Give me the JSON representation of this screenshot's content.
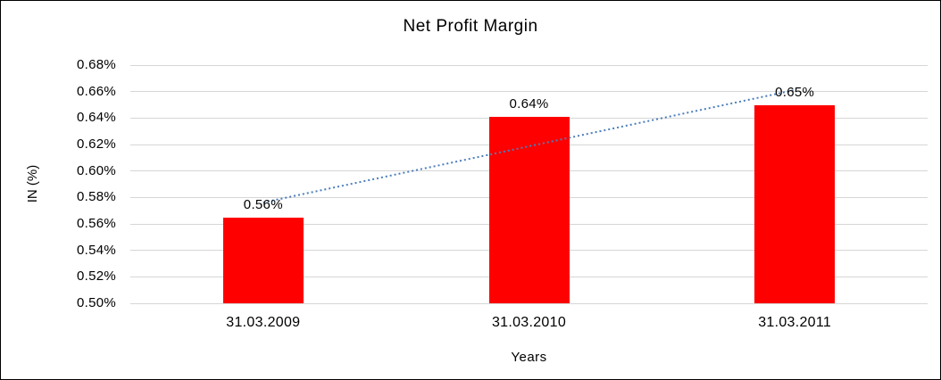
{
  "chart_data": {
    "type": "bar",
    "title": "Net Profit Margin",
    "xlabel": "Years",
    "ylabel": "IN (%)",
    "categories": [
      "31.03.2009",
      "31.03.2010",
      "31.03.2011"
    ],
    "values": [
      0.565,
      0.641,
      0.65
    ],
    "value_labels": [
      "0.56%",
      "0.64%",
      "0.65%"
    ],
    "ylim": [
      0.5,
      0.68
    ],
    "yticks": [
      {
        "value": 0.5,
        "label": "0.50%"
      },
      {
        "value": 0.52,
        "label": "0.52%"
      },
      {
        "value": 0.54,
        "label": "0.54%"
      },
      {
        "value": 0.56,
        "label": "0.56%"
      },
      {
        "value": 0.58,
        "label": "0.58%"
      },
      {
        "value": 0.6,
        "label": "0.60%"
      },
      {
        "value": 0.62,
        "label": "0.62%"
      },
      {
        "value": 0.64,
        "label": "0.64%"
      },
      {
        "value": 0.66,
        "label": "0.66%"
      },
      {
        "value": 0.68,
        "label": "0.68%"
      }
    ],
    "grid": true,
    "legend": false,
    "bar_color": "#FF0000",
    "trendline": {
      "type": "linear",
      "style": "dotted",
      "color": "#4A7EBB"
    }
  }
}
